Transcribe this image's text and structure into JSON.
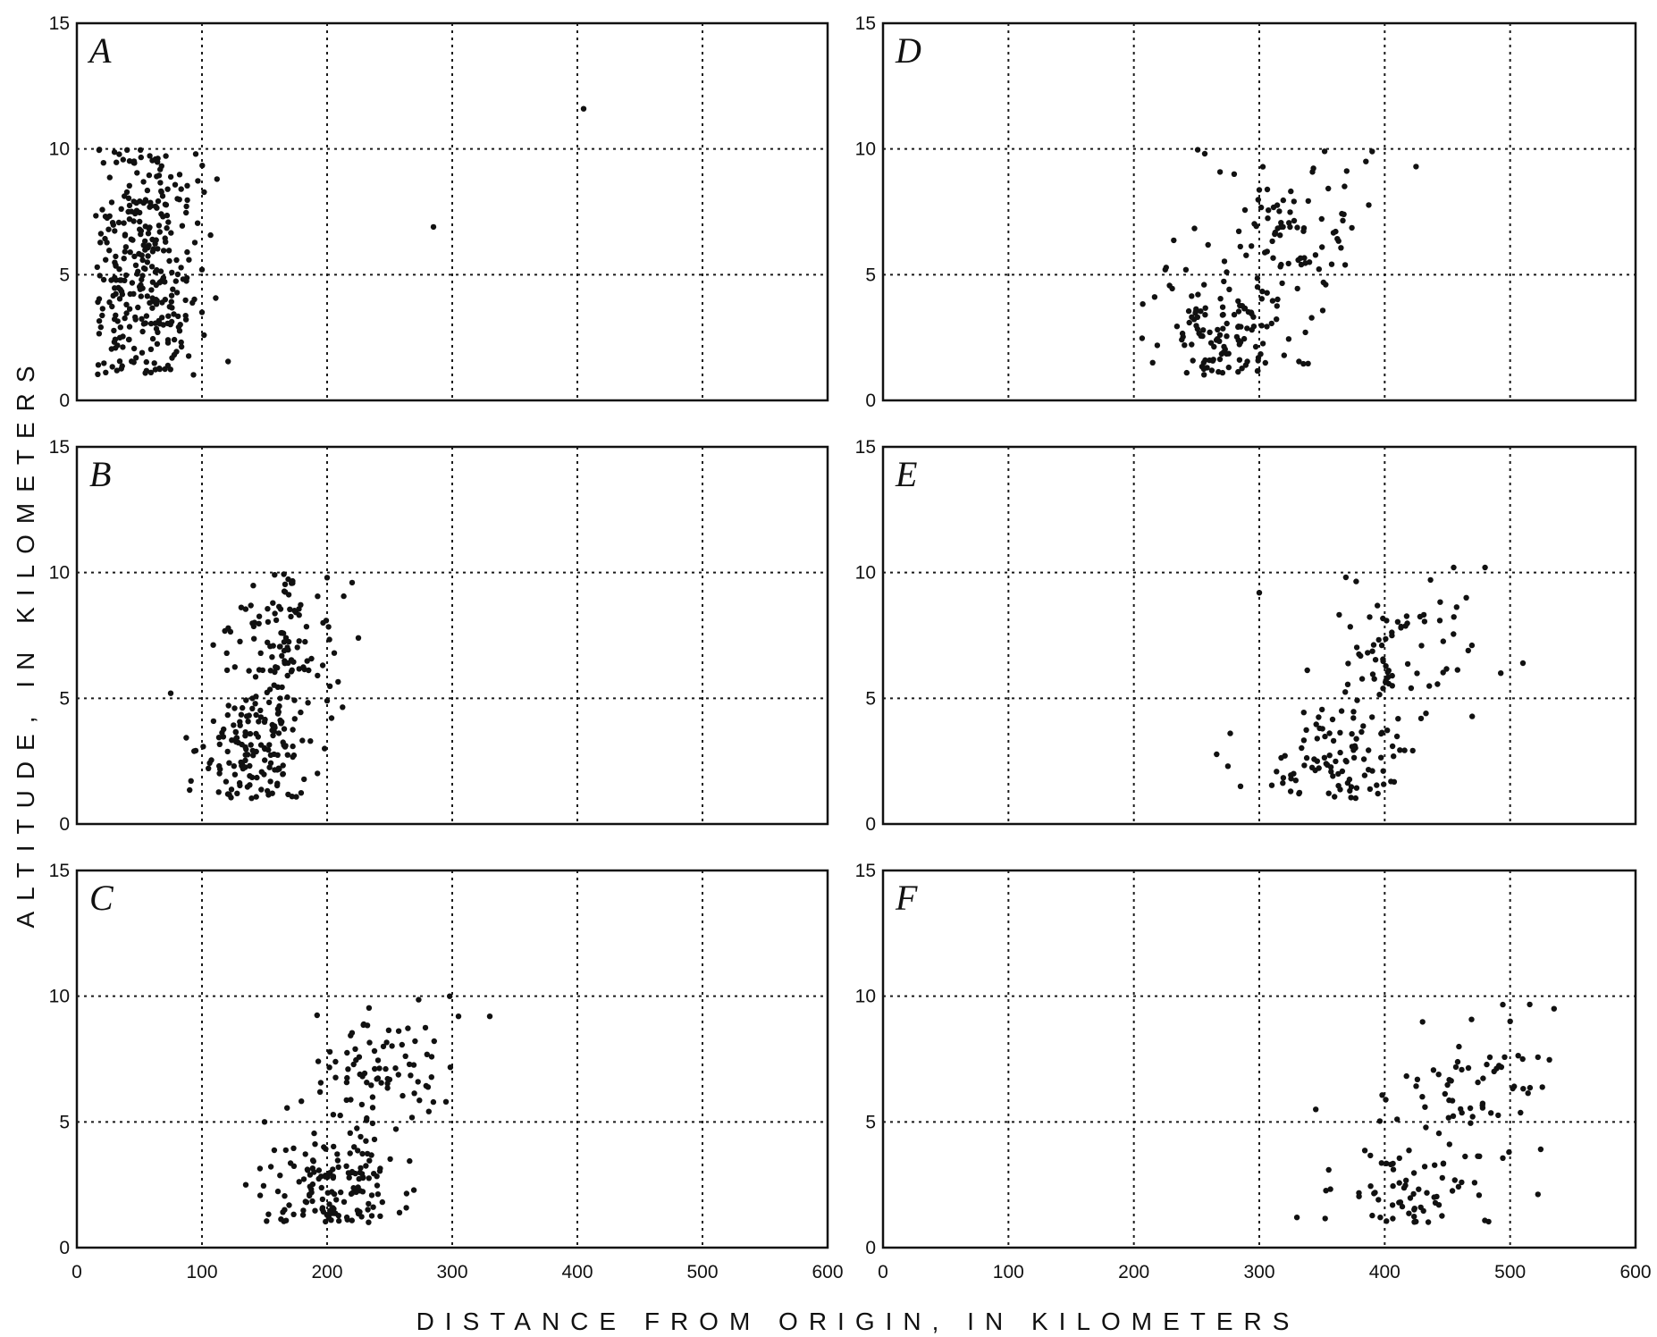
{
  "chart_data": {
    "type": "scatter",
    "xlabel": "DISTANCE FROM ORIGIN, IN KILOMETERS",
    "ylabel": "ALTITUDE, IN KILOMETERS",
    "xlim": [
      0,
      600
    ],
    "ylim": [
      0,
      15
    ],
    "x_ticks": [
      "0",
      "100",
      "200",
      "300",
      "400",
      "500",
      "600"
    ],
    "y_ticks": [
      "0",
      "5",
      "10",
      "15"
    ],
    "grid": true,
    "panels": [
      {
        "label": "A",
        "spread": [
          12,
          2.5
        ],
        "clusters": [
          {
            "x": 55,
            "y": 3.5,
            "dx": 22,
            "dy": 1.6,
            "n": 180
          },
          {
            "x": 55,
            "y": 7.5,
            "dx": 20,
            "dy": 1.5,
            "n": 140
          }
        ],
        "outliers": [
          [
            100,
            3.5
          ],
          [
            112,
            8.8
          ],
          [
            95,
            9.8
          ],
          [
            285,
            6.9
          ],
          [
            405,
            11.6
          ],
          [
            100,
            5.2
          ]
        ]
      },
      {
        "label": "B",
        "spread": [
          24,
          2.5
        ],
        "clusters": [
          {
            "x": 140,
            "y": 3.0,
            "dx": 22,
            "dy": 1.3,
            "n": 150
          },
          {
            "x": 160,
            "y": 7.0,
            "dx": 22,
            "dy": 1.4,
            "n": 110
          }
        ],
        "outliers": [
          [
            220,
            9.6
          ],
          [
            225,
            7.4
          ],
          [
            198,
            3.0
          ],
          [
            200,
            4.9
          ],
          [
            75,
            5.2
          ],
          [
            200,
            9.8
          ]
        ]
      },
      {
        "label": "C",
        "spread": [
          55,
          2.5
        ],
        "clusters": [
          {
            "x": 205,
            "y": 2.5,
            "dx": 28,
            "dy": 1.2,
            "n": 150
          },
          {
            "x": 240,
            "y": 7.0,
            "dx": 25,
            "dy": 1.4,
            "n": 80
          }
        ],
        "outliers": [
          [
            305,
            9.2
          ],
          [
            330,
            9.2
          ],
          [
            298,
            10.0
          ],
          [
            150,
            5.0
          ],
          [
            295,
            5.8
          ],
          [
            135,
            2.5
          ]
        ]
      },
      {
        "label": "D",
        "spread": [
          40,
          4.0
        ],
        "clusters": [
          {
            "x": 275,
            "y": 2.5,
            "dx": 28,
            "dy": 1.1,
            "n": 120
          },
          {
            "x": 320,
            "y": 6.5,
            "dx": 30,
            "dy": 1.6,
            "n": 90
          }
        ],
        "outliers": [
          [
            390,
            9.9
          ],
          [
            425,
            9.3
          ],
          [
            385,
            9.5
          ],
          [
            225,
            5.2
          ],
          [
            215,
            1.5
          ],
          [
            280,
            9.0
          ]
        ]
      },
      {
        "label": "E",
        "spread": [
          100,
          5.5
        ],
        "clusters": [
          {
            "x": 360,
            "y": 2.6,
            "dx": 25,
            "dy": 1.1,
            "n": 90
          },
          {
            "x": 410,
            "y": 6.5,
            "dx": 30,
            "dy": 1.6,
            "n": 80
          }
        ],
        "outliers": [
          [
            465,
            9.0
          ],
          [
            455,
            10.2
          ],
          [
            480,
            10.2
          ],
          [
            275,
            2.3
          ],
          [
            285,
            1.5
          ],
          [
            300,
            9.2
          ]
        ]
      },
      {
        "label": "F",
        "spread": [
          130,
          6.5
        ],
        "clusters": [
          {
            "x": 415,
            "y": 2.2,
            "dx": 25,
            "dy": 1.0,
            "n": 60
          },
          {
            "x": 470,
            "y": 6.0,
            "dx": 28,
            "dy": 1.6,
            "n": 70
          }
        ],
        "outliers": [
          [
            535,
            9.5
          ],
          [
            345,
            5.5
          ],
          [
            330,
            1.2
          ],
          [
            500,
            9.0
          ],
          [
            510,
            7.5
          ],
          [
            430,
            6.0
          ]
        ]
      }
    ]
  }
}
